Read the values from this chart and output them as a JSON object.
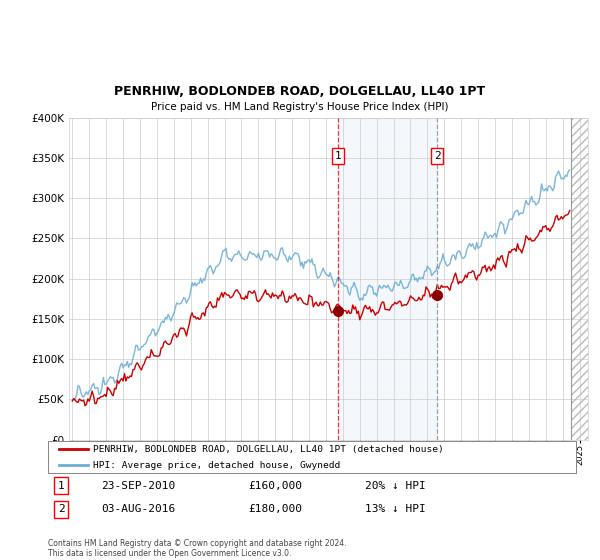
{
  "title": "PENRHIW, BODLONDEB ROAD, DOLGELLAU, LL40 1PT",
  "subtitle": "Price paid vs. HM Land Registry's House Price Index (HPI)",
  "legend_line1": "PENRHIW, BODLONDEB ROAD, DOLGELLAU, LL40 1PT (detached house)",
  "legend_line2": "HPI: Average price, detached house, Gwynedd",
  "sale1_date": "23-SEP-2010",
  "sale1_price": "£160,000",
  "sale1_hpi": "20% ↓ HPI",
  "sale2_date": "03-AUG-2016",
  "sale2_price": "£180,000",
  "sale2_hpi": "13% ↓ HPI",
  "footer": "Contains HM Land Registry data © Crown copyright and database right 2024.\nThis data is licensed under the Open Government Licence v3.0.",
  "hpi_color": "#6baed6",
  "price_color": "#cc0000",
  "vline1_x": 2010.72,
  "vline2_x": 2016.58,
  "hatch_start": 2024.5,
  "sale1_price_val": 160000,
  "sale1_year": 2010.72,
  "sale2_price_val": 180000,
  "sale2_year": 2016.58,
  "ylim": [
    0,
    400000
  ],
  "xlim_start": 1994.8,
  "xlim_end": 2025.5,
  "background_color": "#ffffff",
  "grid_color": "#cccccc"
}
